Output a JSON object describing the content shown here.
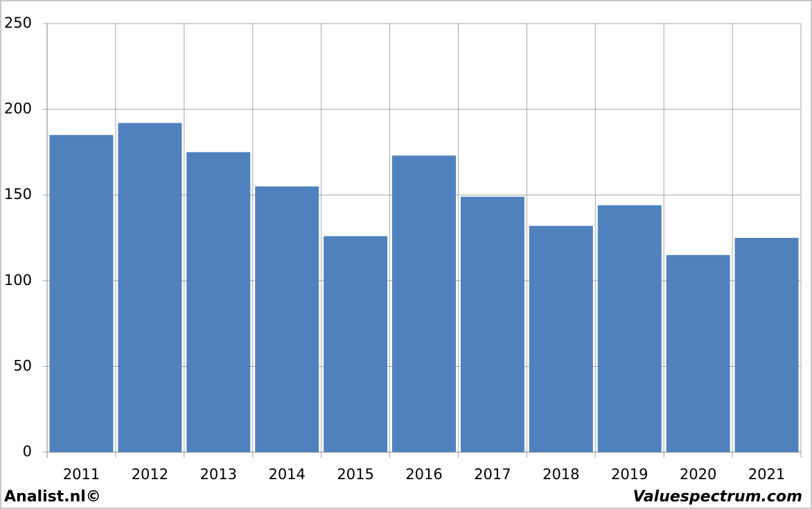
{
  "chart_data": {
    "type": "bar",
    "categories": [
      "2011",
      "2012",
      "2013",
      "2014",
      "2015",
      "2016",
      "2017",
      "2018",
      "2019",
      "2020",
      "2021"
    ],
    "values": [
      185,
      192,
      175,
      155,
      126,
      173,
      149,
      132,
      144,
      115,
      125
    ],
    "color": "#4f81bd",
    "ylim": [
      0,
      250
    ],
    "yticks": [
      0,
      50,
      100,
      150,
      200,
      250
    ],
    "grid": true,
    "annotations": [
      "Analist.nl©",
      "Valuespectrum.com"
    ]
  }
}
